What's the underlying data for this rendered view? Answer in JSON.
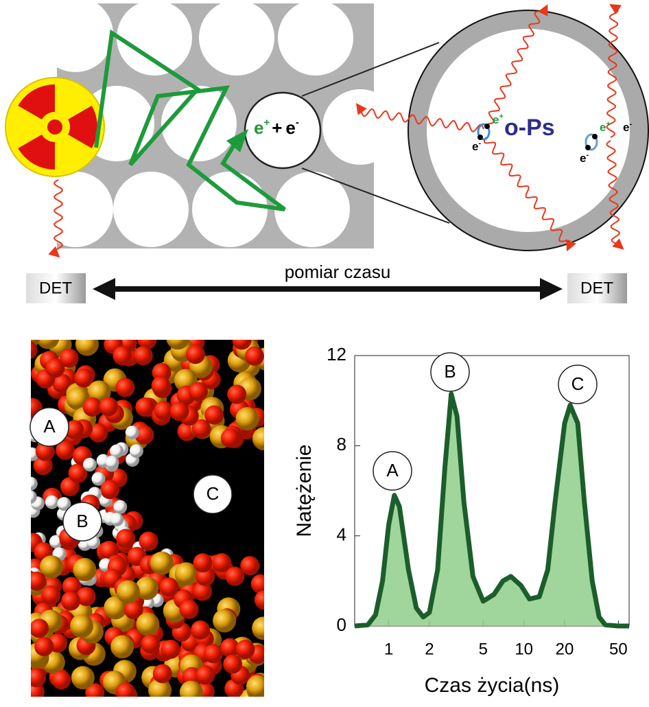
{
  "diagram": {
    "positron": {
      "symbol": "e",
      "charge": "+"
    },
    "electron": {
      "symbol": "e",
      "charge": "-"
    },
    "plus": "+",
    "ops": "o-Ps",
    "detector": "DET",
    "timing": "pomiar czasu"
  },
  "structure": {
    "labels": [
      "A",
      "B",
      "C"
    ]
  },
  "chart_data": {
    "type": "area",
    "y_label": "Natężenie",
    "x_label": "Czas życia(ns)",
    "x": [
      0.56,
      0.7,
      0.8,
      0.9,
      1.0,
      1.1,
      1.2,
      1.4,
      1.6,
      1.8,
      2.0,
      2.3,
      2.6,
      2.9,
      3.2,
      3.6,
      4.2,
      5.0,
      6.0,
      7.0,
      8.0,
      9.5,
      11,
      13,
      15,
      17,
      20,
      22,
      25,
      28,
      32,
      36,
      40,
      50,
      60
    ],
    "values": [
      0,
      0.05,
      0.5,
      2,
      4.5,
      5.8,
      5.3,
      2.5,
      0.8,
      0.4,
      0.6,
      2.5,
      7,
      10.3,
      9.3,
      5.5,
      2.2,
      1.1,
      1.4,
      2.0,
      2.2,
      1.8,
      1.2,
      1.3,
      2.5,
      5.5,
      9.0,
      9.8,
      9.0,
      5.5,
      2,
      0.4,
      0.05,
      0,
      0
    ],
    "color": "#1b5e2b",
    "fill_color": "#8fcf8a",
    "xscale": "log",
    "xlim": [
      0.56,
      60
    ],
    "ylim": [
      0,
      12
    ],
    "xticks": [
      1,
      2,
      5,
      10,
      20,
      50
    ],
    "yticks": [
      0,
      4,
      8,
      12
    ],
    "annotations": [
      "A",
      "B",
      "C"
    ]
  }
}
